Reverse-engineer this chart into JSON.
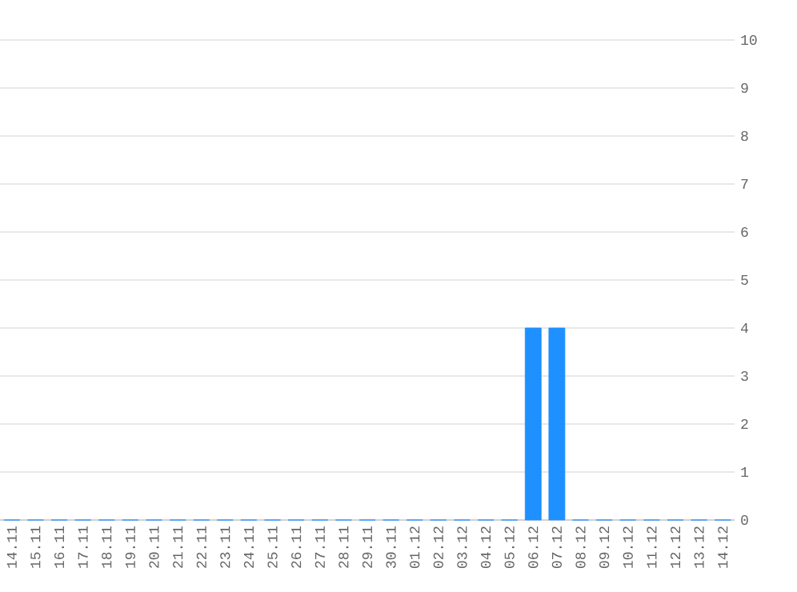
{
  "chart_data": {
    "type": "bar",
    "categories": [
      "14.11",
      "15.11",
      "16.11",
      "17.11",
      "18.11",
      "19.11",
      "20.11",
      "21.11",
      "22.11",
      "23.11",
      "24.11",
      "25.11",
      "26.11",
      "27.11",
      "28.11",
      "29.11",
      "30.11",
      "01.12",
      "02.12",
      "03.12",
      "04.12",
      "05.12",
      "06.12",
      "07.12",
      "08.12",
      "09.12",
      "10.12",
      "11.12",
      "12.12",
      "13.12",
      "14.12"
    ],
    "values": [
      0,
      0,
      0,
      0,
      0,
      0,
      0,
      0,
      0,
      0,
      0,
      0,
      0,
      0,
      0,
      0,
      0,
      0,
      0,
      0,
      0,
      0,
      4,
      4,
      0,
      0,
      0,
      0,
      0,
      0,
      0
    ],
    "color": "#1e90ff",
    "ylim": [
      0,
      10
    ],
    "yticks": [
      0,
      1,
      2,
      3,
      4,
      5,
      6,
      7,
      8,
      9,
      10
    ],
    "grid": "y"
  }
}
